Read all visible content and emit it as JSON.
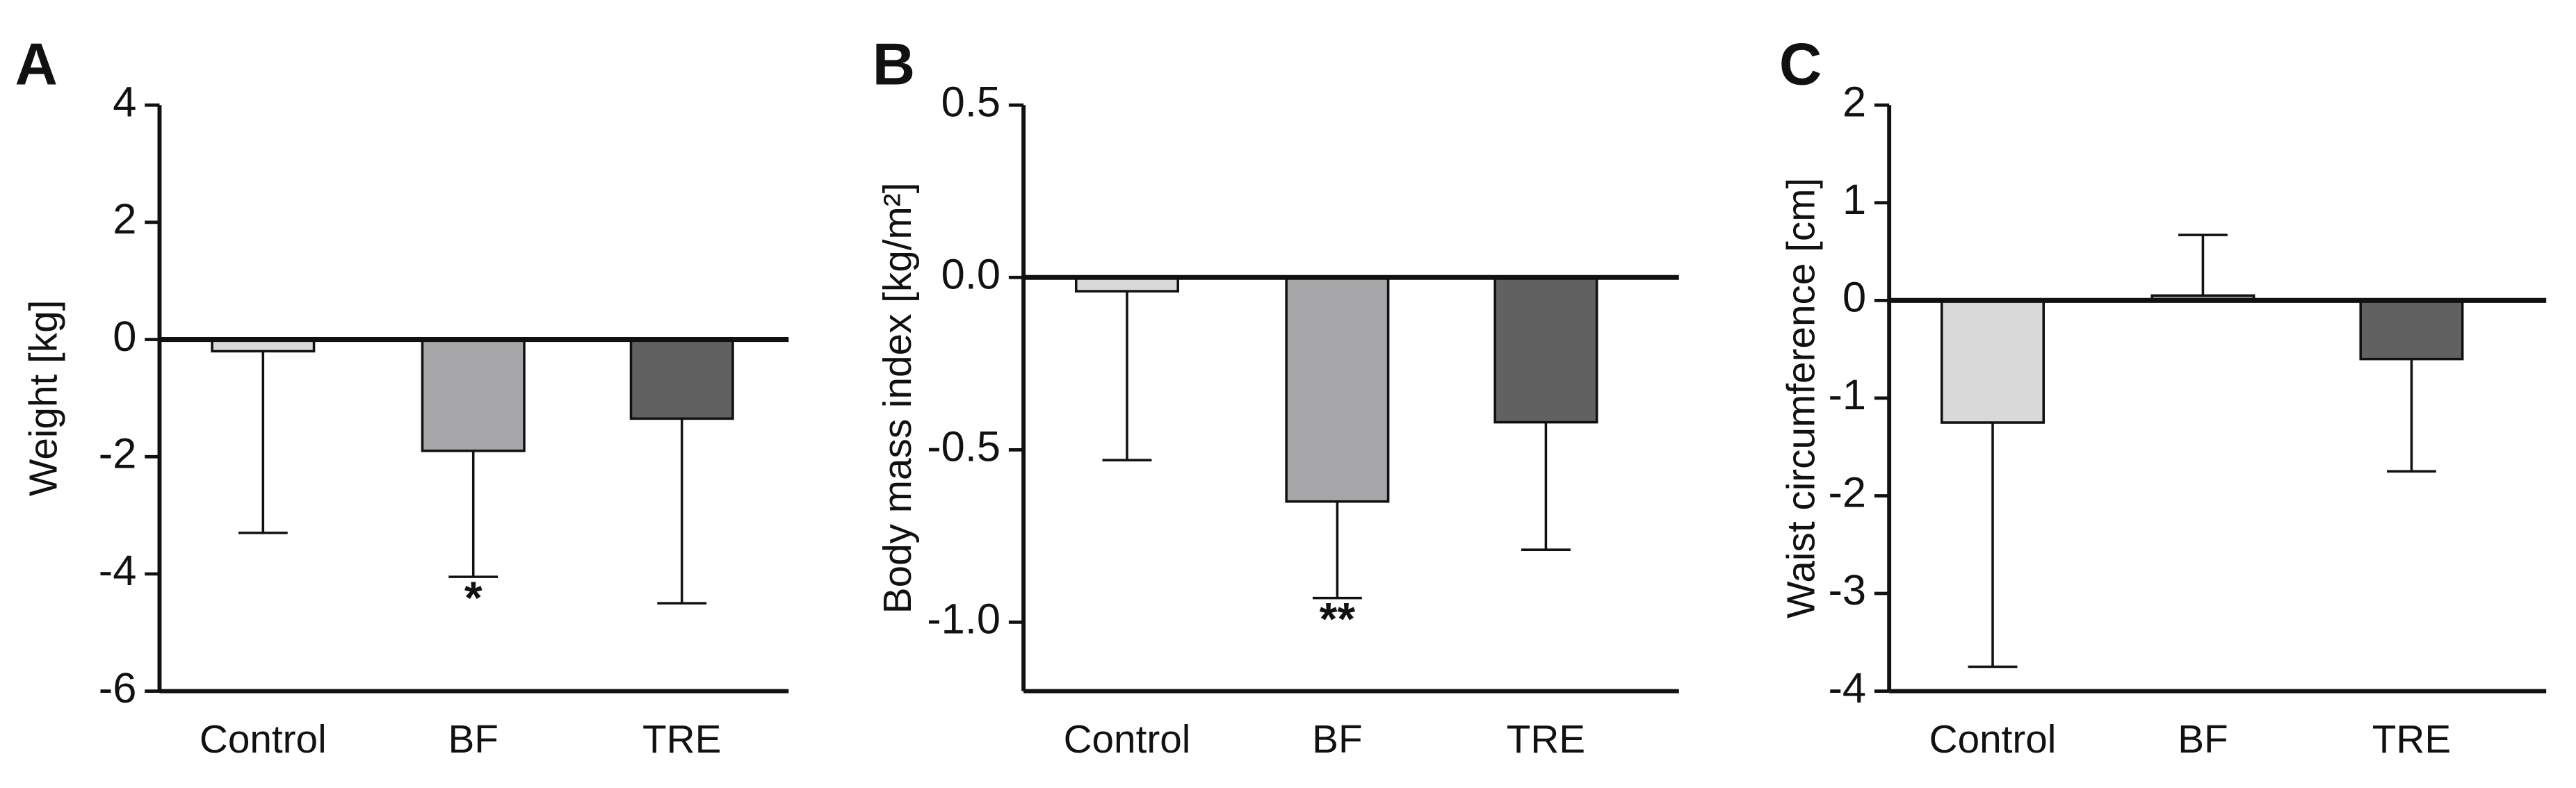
{
  "chart_data": [
    {
      "type": "bar",
      "panel_label": "A",
      "ylabel": "Weight [kg]",
      "categories": [
        "Control",
        "BF",
        "TRE"
      ],
      "values": [
        -0.2,
        -1.9,
        -1.35
      ],
      "errors": [
        3.1,
        2.15,
        3.15
      ],
      "colors": [
        "#d9d9d9",
        "#a6a6a8",
        "#616161"
      ],
      "annotations": [
        null,
        "*",
        null
      ],
      "ylim": [
        -6,
        4
      ],
      "yticks": [
        -6,
        -4,
        -2,
        0,
        2,
        4
      ]
    },
    {
      "type": "bar",
      "panel_label": "B",
      "ylabel": "Body mass index [kg/m²]",
      "categories": [
        "Control",
        "BF",
        "TRE"
      ],
      "values": [
        -0.04,
        -0.65,
        -0.42
      ],
      "errors": [
        0.49,
        0.28,
        0.37
      ],
      "colors": [
        "#d9d9d9",
        "#a6a6a8",
        "#616161"
      ],
      "annotations": [
        null,
        "**",
        null
      ],
      "ylim": [
        -1.2,
        0.5
      ],
      "yticks": [
        {
          "value": -1,
          "label": "-1.0"
        },
        -0.5,
        {
          "value": 0,
          "label": "0.0"
        },
        0.5
      ]
    },
    {
      "type": "bar",
      "panel_label": "C",
      "ylabel": "Waist circumference [cm]",
      "categories": [
        "Control",
        "BF",
        "TRE"
      ],
      "values": [
        -1.25,
        0.05,
        -0.6
      ],
      "errors": [
        2.5,
        0.62,
        1.15
      ],
      "colors": [
        "#d9d9d9",
        "#a6a6a8",
        "#616161"
      ],
      "annotations": [
        null,
        null,
        null
      ],
      "ylim": [
        -4,
        2
      ],
      "yticks": [
        -4,
        -3,
        -2,
        -1,
        0,
        1,
        2
      ]
    }
  ]
}
